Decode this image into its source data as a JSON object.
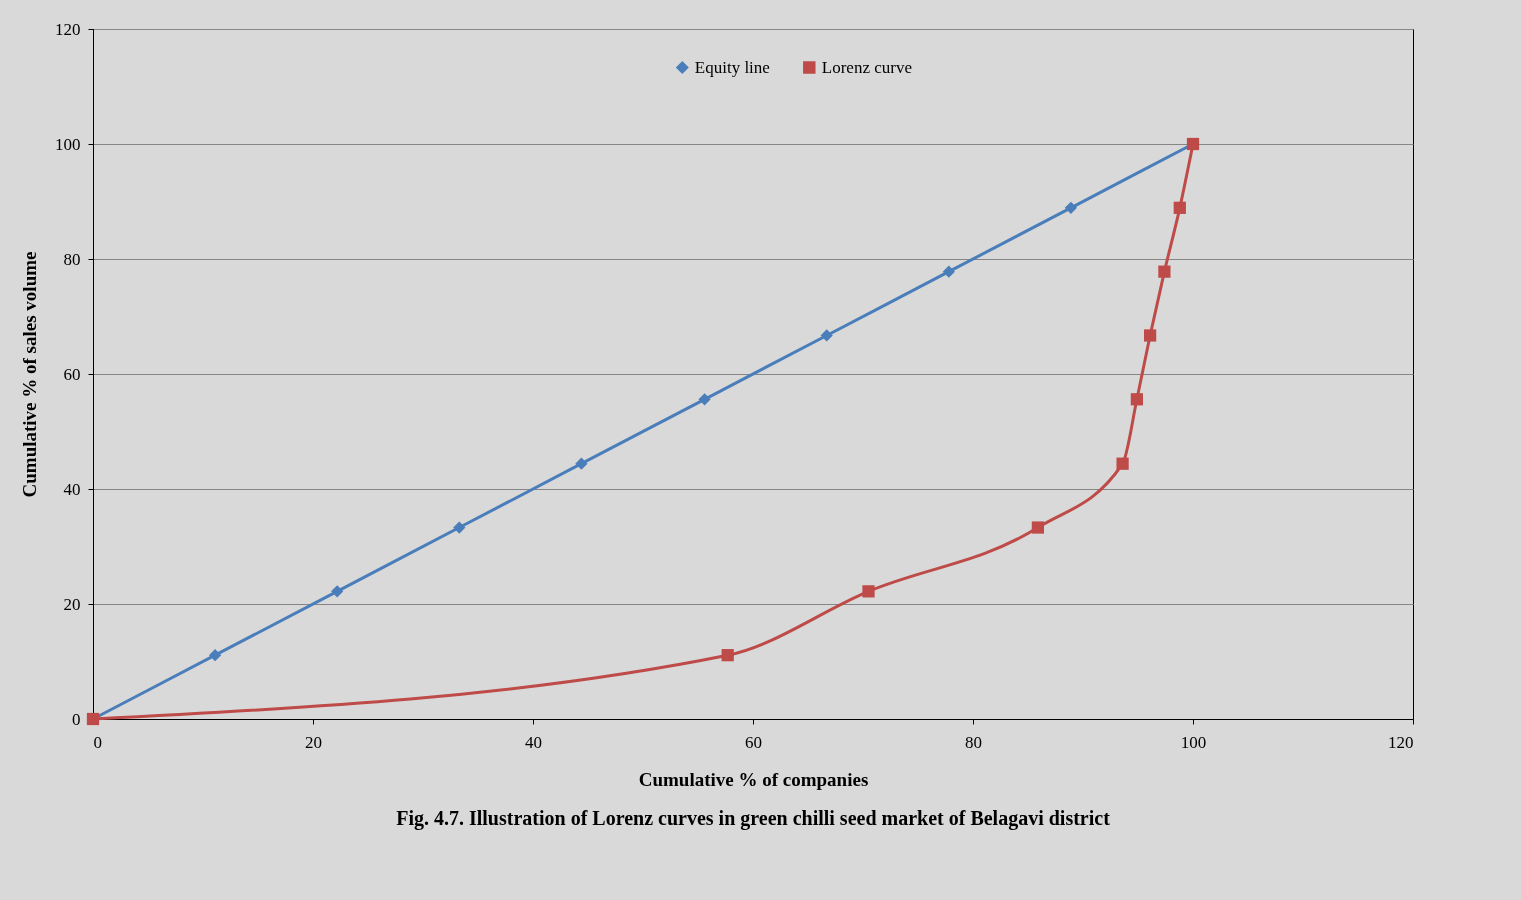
{
  "chart_data": {
    "type": "line",
    "xlabel": "Cumulative % of companies",
    "ylabel": "Cumulative % of sales volume",
    "annotations": [
      "Fig. 4.7. Illustration of Lorenz curves in green chilli seed market of Belagavi district"
    ],
    "series": [
      {
        "name": "Equity line",
        "color": "#4a7ebb",
        "marker": "diamond",
        "x": [
          0,
          11.1,
          22.2,
          33.3,
          44.4,
          55.6,
          66.7,
          77.8,
          88.9,
          100
        ],
        "values": [
          0,
          11.1,
          22.2,
          33.3,
          44.4,
          55.6,
          66.7,
          77.8,
          88.9,
          100
        ]
      },
      {
        "name": "Lorenz curve",
        "color": "#be4b48",
        "marker": "square",
        "x": [
          0,
          57.7,
          70.5,
          85.9,
          93.6,
          94.9,
          96.1,
          97.4,
          98.8,
          100
        ],
        "values": [
          0,
          11.1,
          22.2,
          33.3,
          44.4,
          55.6,
          66.7,
          77.8,
          88.9,
          100
        ]
      }
    ],
    "xlim": [
      0,
      120
    ],
    "xticks": [
      0,
      20,
      40,
      60,
      80,
      100,
      120
    ],
    "ylim": [
      0,
      120
    ],
    "yticks": [
      0,
      20,
      40,
      60,
      80,
      100,
      120
    ],
    "grid": "y",
    "legend": "top",
    "line_style": "solid"
  }
}
